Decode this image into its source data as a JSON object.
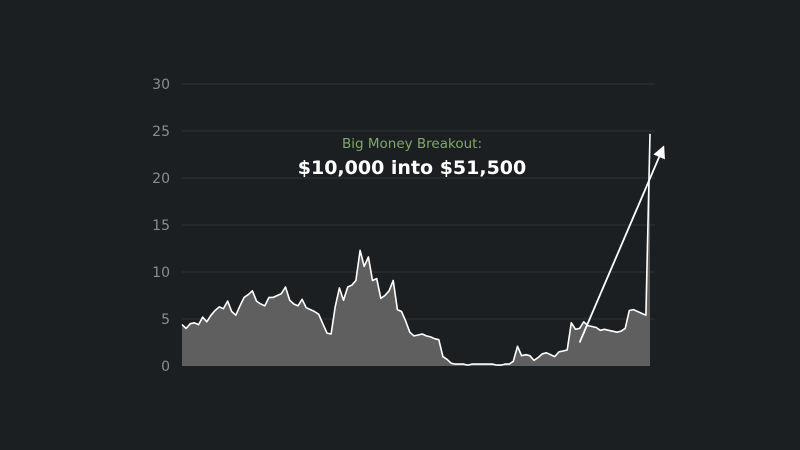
{
  "chart_data": {
    "type": "area",
    "title": "",
    "xlabel": "",
    "ylabel": "",
    "ylim": [
      0,
      30
    ],
    "yticks": [
      0,
      5,
      10,
      15,
      20,
      25,
      30
    ],
    "grid": true,
    "legend": "none",
    "annotation": {
      "subtitle": "Big Money Breakout:",
      "title": "$10,000 into $51,500"
    },
    "colors": {
      "background": "#1c1f21",
      "area_fill": "#5f5f5f",
      "line": "#ffffff",
      "grid": "#2f3336",
      "tick_text": "#8a8d8f",
      "annotation_subtitle": "#7fa86a",
      "annotation_title": "#ffffff"
    },
    "series": [
      {
        "values": [
          4.4,
          4.0,
          4.5,
          4.6,
          4.4,
          5.2,
          4.7,
          5.4,
          5.9,
          6.3,
          6.1,
          6.9,
          5.8,
          5.4,
          6.4,
          7.3,
          7.6,
          8.0,
          6.9,
          6.6,
          6.4,
          7.3,
          7.3,
          7.5,
          7.7,
          8.4,
          7.0,
          6.6,
          6.4,
          7.1,
          6.2,
          6.0,
          5.8,
          5.5,
          4.5,
          3.5,
          3.4,
          6.3,
          8.3,
          7.0,
          8.4,
          8.6,
          9.1,
          12.3,
          10.6,
          11.6,
          9.1,
          9.3,
          7.2,
          7.5,
          8.0,
          9.1,
          6.0,
          5.8,
          4.8,
          3.6,
          3.2,
          3.3,
          3.4,
          3.2,
          3.1,
          2.9,
          2.8,
          1.0,
          0.7,
          0.3,
          0.2,
          0.2,
          0.2,
          0.1,
          0.2,
          0.2,
          0.2,
          0.2,
          0.2,
          0.2,
          0.1,
          0.1,
          0.2,
          0.2,
          0.5,
          2.1,
          1.1,
          1.2,
          1.1,
          0.6,
          0.9,
          1.3,
          1.4,
          1.2,
          1.0,
          1.5,
          1.6,
          1.7,
          4.6,
          3.9,
          4.0,
          4.7,
          4.3,
          4.2,
          4.1,
          3.8,
          3.9,
          3.8,
          3.7,
          3.6,
          3.7,
          4.0,
          5.9,
          6.0,
          5.8,
          5.6,
          5.4,
          24.7
        ]
      }
    ],
    "arrow": {
      "from_index": 96,
      "from_value": 2.5,
      "to_index": 121,
      "to_value": 24.5
    }
  }
}
